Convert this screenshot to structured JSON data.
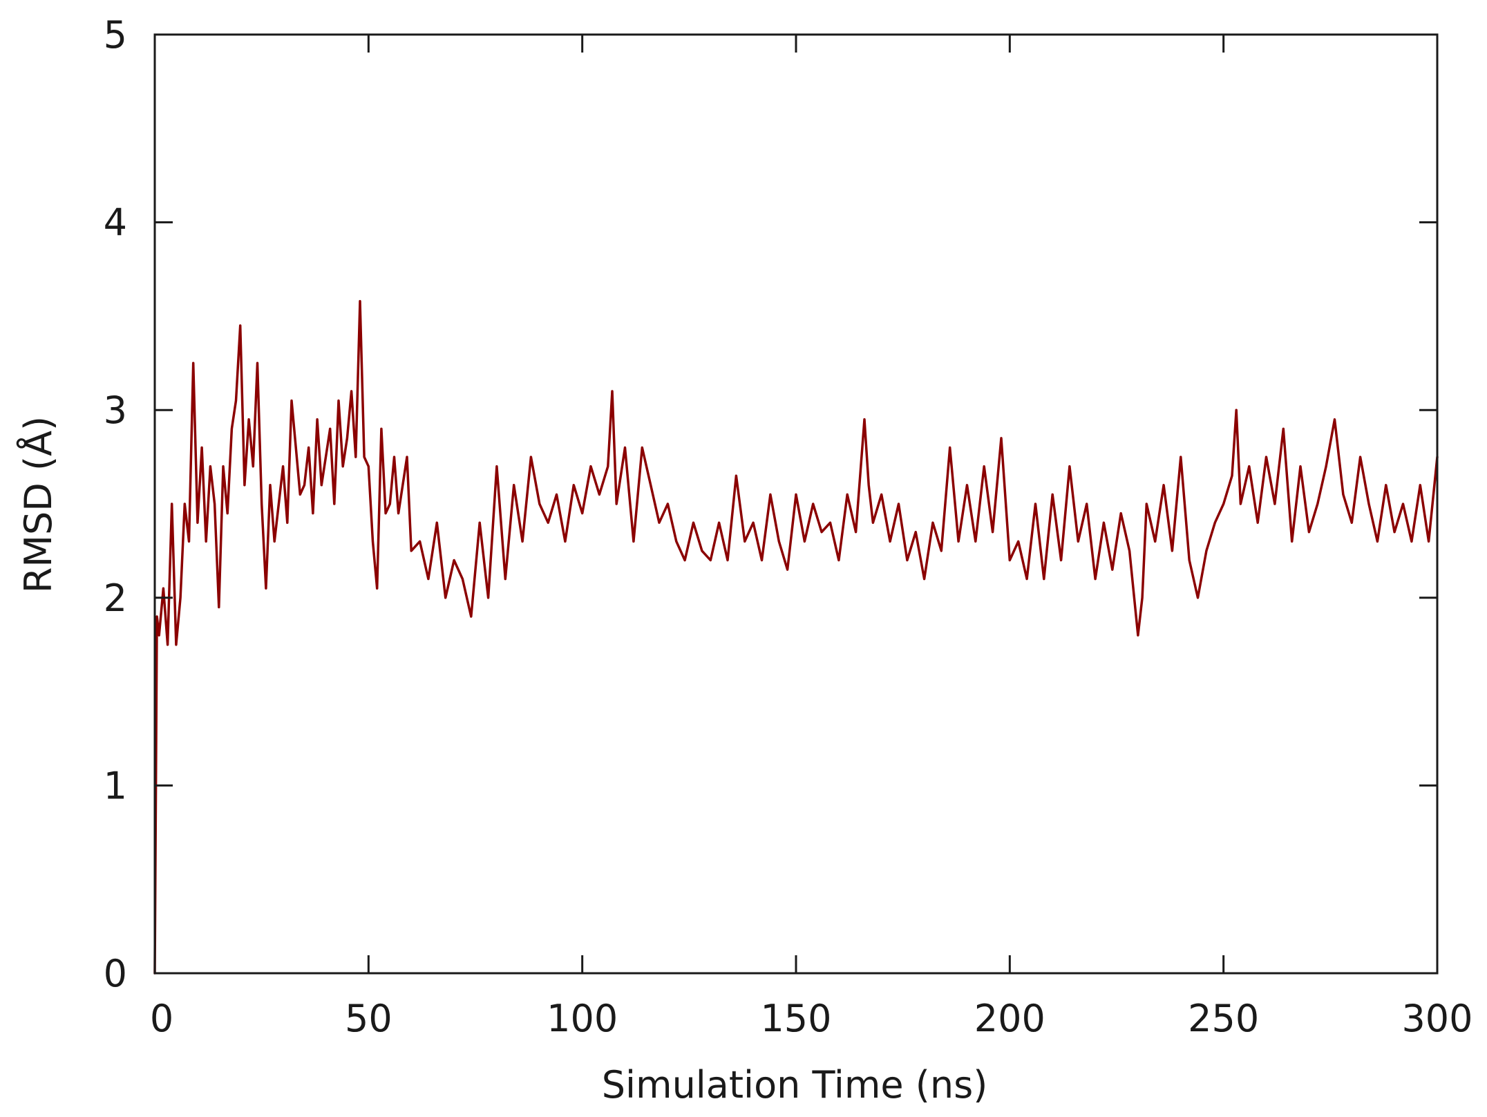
{
  "chart_data": {
    "type": "line",
    "xlabel": "Simulation Time (ns)",
    "ylabel": "RMSD (Å)",
    "xlim": [
      0,
      300
    ],
    "ylim": [
      0,
      5
    ],
    "x_ticks": [
      "0",
      "50",
      "100",
      "150",
      "200",
      "250",
      "300"
    ],
    "y_ticks": [
      "0",
      "1",
      "2",
      "3",
      "4",
      "5"
    ],
    "grid": false,
    "legend": "none",
    "line_color": "#8b0000",
    "series": [
      {
        "x": [
          0,
          0.5,
          1,
          2,
          3,
          4,
          5,
          6,
          7,
          8,
          9,
          10,
          11,
          12,
          13,
          14,
          15,
          16,
          17,
          18,
          19,
          20,
          21,
          22,
          23,
          24,
          25,
          26,
          27,
          28,
          29,
          30,
          31,
          32,
          33,
          34,
          35,
          36,
          37,
          38,
          39,
          40,
          41,
          42,
          43,
          44,
          45,
          46,
          47,
          48,
          49,
          50,
          51,
          52,
          53,
          54,
          55,
          56,
          57,
          58,
          59,
          60,
          62,
          64,
          66,
          68,
          70,
          72,
          74,
          76,
          78,
          80,
          82,
          84,
          86,
          88,
          90,
          92,
          94,
          96,
          98,
          100,
          102,
          104,
          106,
          107,
          108,
          110,
          112,
          114,
          116,
          118,
          120,
          122,
          124,
          126,
          128,
          130,
          132,
          134,
          136,
          138,
          140,
          142,
          144,
          146,
          148,
          150,
          152,
          154,
          156,
          158,
          160,
          162,
          164,
          166,
          167,
          168,
          170,
          172,
          174,
          176,
          178,
          180,
          182,
          184,
          186,
          188,
          190,
          192,
          194,
          196,
          198,
          200,
          202,
          204,
          206,
          208,
          210,
          212,
          214,
          216,
          218,
          220,
          222,
          224,
          226,
          228,
          230,
          231,
          232,
          234,
          236,
          238,
          240,
          242,
          244,
          246,
          248,
          250,
          252,
          253,
          254,
          256,
          258,
          260,
          262,
          264,
          266,
          268,
          270,
          272,
          274,
          276,
          278,
          280,
          282,
          284,
          286,
          288,
          290,
          292,
          294,
          296,
          298,
          300
        ],
        "y": [
          0.0,
          1.9,
          1.8,
          2.05,
          1.75,
          2.5,
          1.75,
          2.0,
          2.5,
          2.3,
          3.25,
          2.4,
          2.8,
          2.3,
          2.7,
          2.5,
          1.95,
          2.7,
          2.45,
          2.9,
          3.05,
          3.45,
          2.6,
          2.95,
          2.7,
          3.25,
          2.5,
          2.05,
          2.6,
          2.3,
          2.5,
          2.7,
          2.4,
          3.05,
          2.8,
          2.55,
          2.6,
          2.8,
          2.45,
          2.95,
          2.6,
          2.75,
          2.9,
          2.5,
          3.05,
          2.7,
          2.85,
          3.1,
          2.75,
          3.58,
          2.75,
          2.7,
          2.3,
          2.05,
          2.9,
          2.45,
          2.5,
          2.75,
          2.45,
          2.6,
          2.75,
          2.25,
          2.3,
          2.1,
          2.4,
          2.0,
          2.2,
          2.1,
          1.9,
          2.4,
          2.0,
          2.7,
          2.1,
          2.6,
          2.3,
          2.75,
          2.5,
          2.4,
          2.55,
          2.3,
          2.6,
          2.45,
          2.7,
          2.55,
          2.7,
          3.1,
          2.5,
          2.8,
          2.3,
          2.8,
          2.6,
          2.4,
          2.5,
          2.3,
          2.2,
          2.4,
          2.25,
          2.2,
          2.4,
          2.2,
          2.65,
          2.3,
          2.4,
          2.2,
          2.55,
          2.3,
          2.15,
          2.55,
          2.3,
          2.5,
          2.35,
          2.4,
          2.2,
          2.55,
          2.35,
          2.95,
          2.6,
          2.4,
          2.55,
          2.3,
          2.5,
          2.2,
          2.35,
          2.1,
          2.4,
          2.25,
          2.8,
          2.3,
          2.6,
          2.3,
          2.7,
          2.35,
          2.85,
          2.2,
          2.3,
          2.1,
          2.5,
          2.1,
          2.55,
          2.2,
          2.7,
          2.3,
          2.5,
          2.1,
          2.4,
          2.15,
          2.45,
          2.25,
          1.8,
          2.0,
          2.5,
          2.3,
          2.6,
          2.25,
          2.75,
          2.2,
          2.0,
          2.25,
          2.4,
          2.5,
          2.65,
          3.0,
          2.5,
          2.7,
          2.4,
          2.75,
          2.5,
          2.9,
          2.3,
          2.7,
          2.35,
          2.5,
          2.7,
          2.95,
          2.55,
          2.4,
          2.75,
          2.5,
          2.3,
          2.6,
          2.35,
          2.5,
          2.3,
          2.6,
          2.3,
          2.75
        ]
      }
    ]
  }
}
